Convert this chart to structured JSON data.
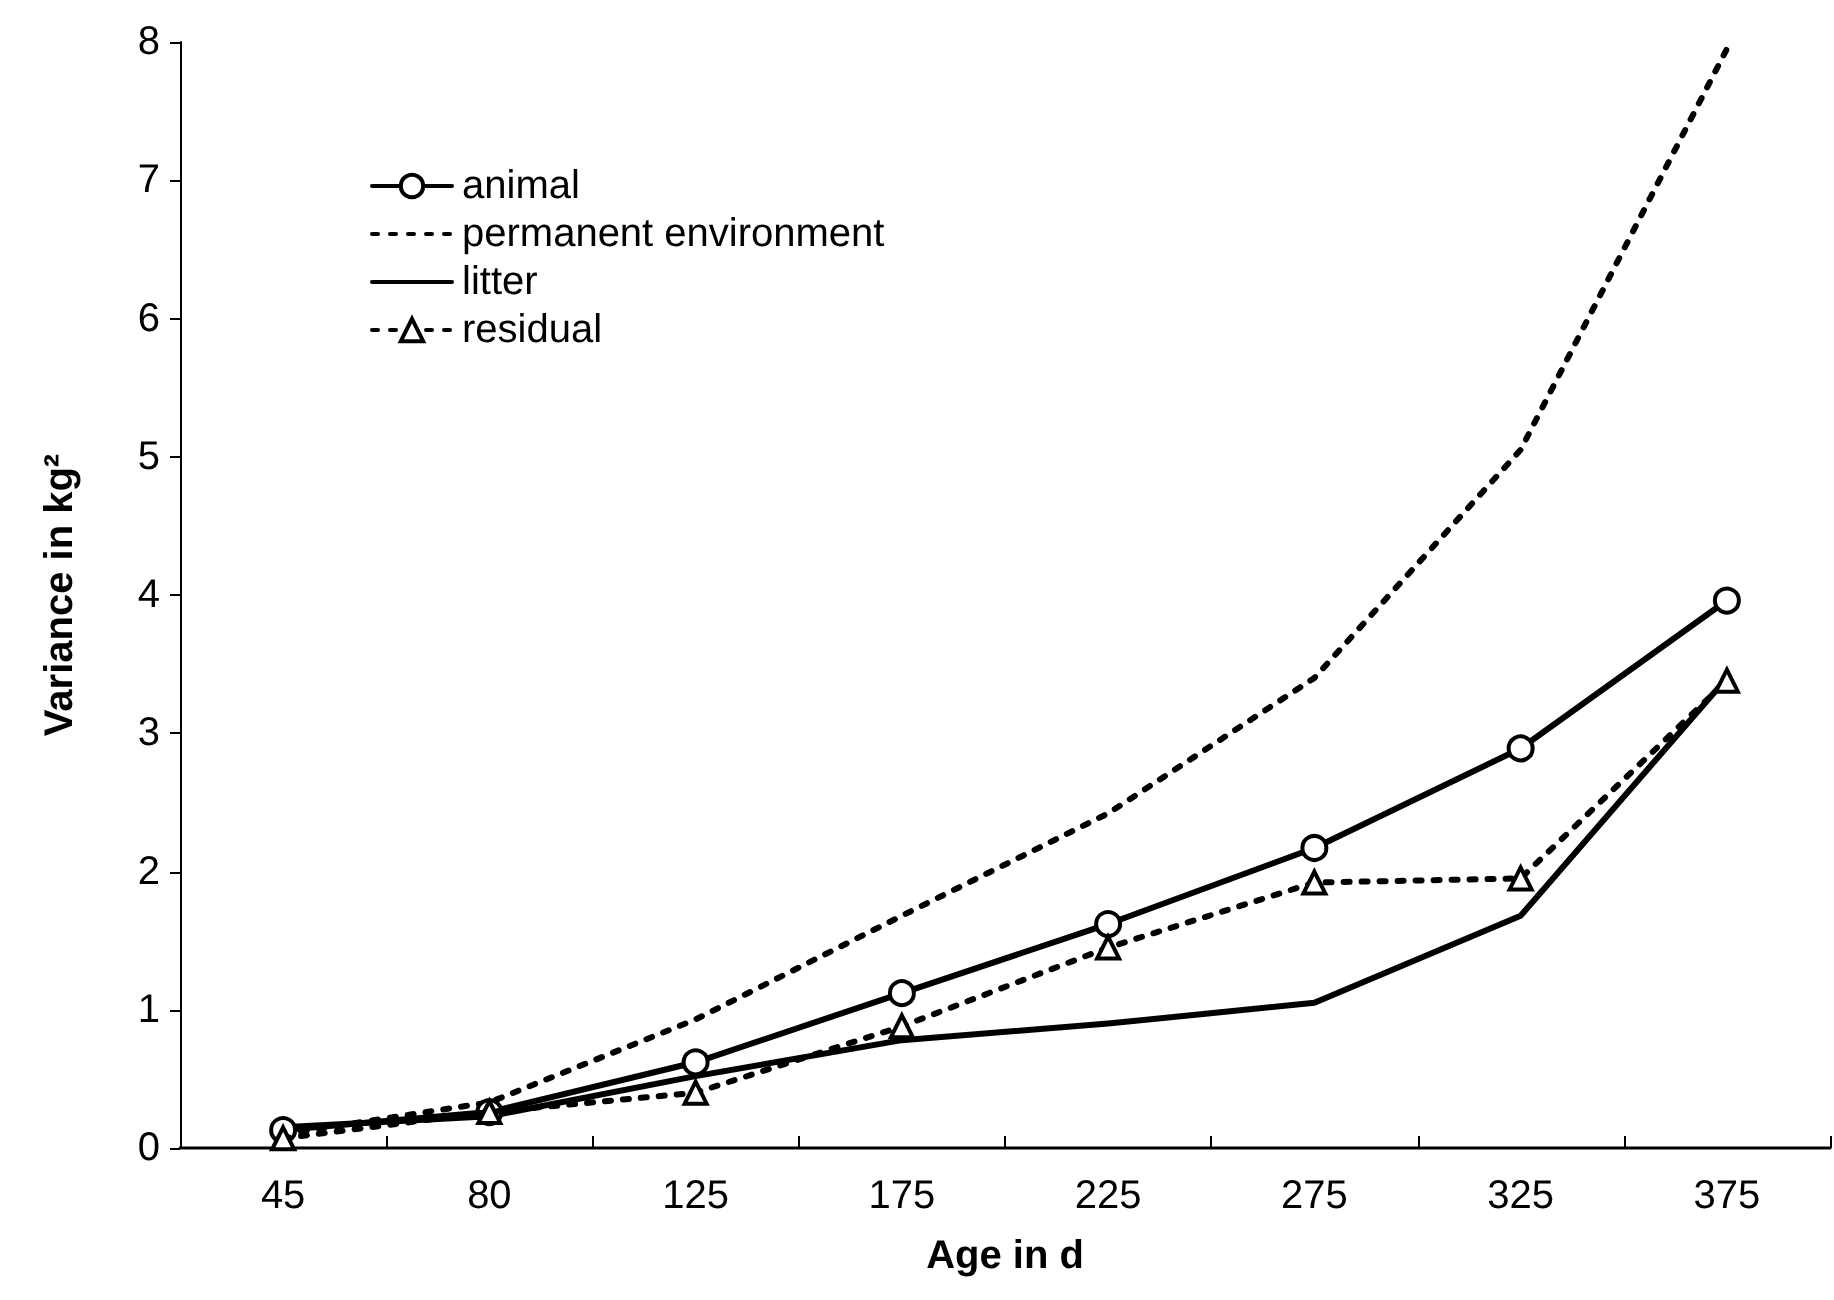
{
  "chart_data": {
    "type": "line",
    "xlabel": "Age in d",
    "ylabel": "Variance in kg²",
    "categories": [
      "45",
      "80",
      "125",
      "175",
      "225",
      "275",
      "325",
      "375"
    ],
    "series": [
      {
        "name": "animal",
        "color": "#000000",
        "marker": "circle",
        "line_style": "solid",
        "values": [
          0.13,
          0.26,
          0.62,
          1.12,
          1.62,
          2.17,
          2.89,
          3.96
        ]
      },
      {
        "name": "permanent environment",
        "color": "#000000",
        "marker": "none",
        "line_style": "dotted",
        "values": [
          0.1,
          0.33,
          0.93,
          1.68,
          2.42,
          3.4,
          5.05,
          7.95
        ]
      },
      {
        "name": "litter",
        "color": "#000000",
        "marker": "none",
        "line_style": "solid",
        "values": [
          0.15,
          0.23,
          0.52,
          0.78,
          0.9,
          1.05,
          1.68,
          3.4
        ]
      },
      {
        "name": "residual",
        "color": "#000000",
        "marker": "triangle",
        "line_style": "dotted",
        "values": [
          0.07,
          0.26,
          0.4,
          0.88,
          1.45,
          1.92,
          1.95,
          3.38
        ]
      }
    ],
    "ylim": [
      0,
      8
    ],
    "yticks": [
      0,
      1,
      2,
      3,
      4,
      5,
      6,
      7,
      8
    ],
    "grid": false,
    "legend": "top left"
  }
}
